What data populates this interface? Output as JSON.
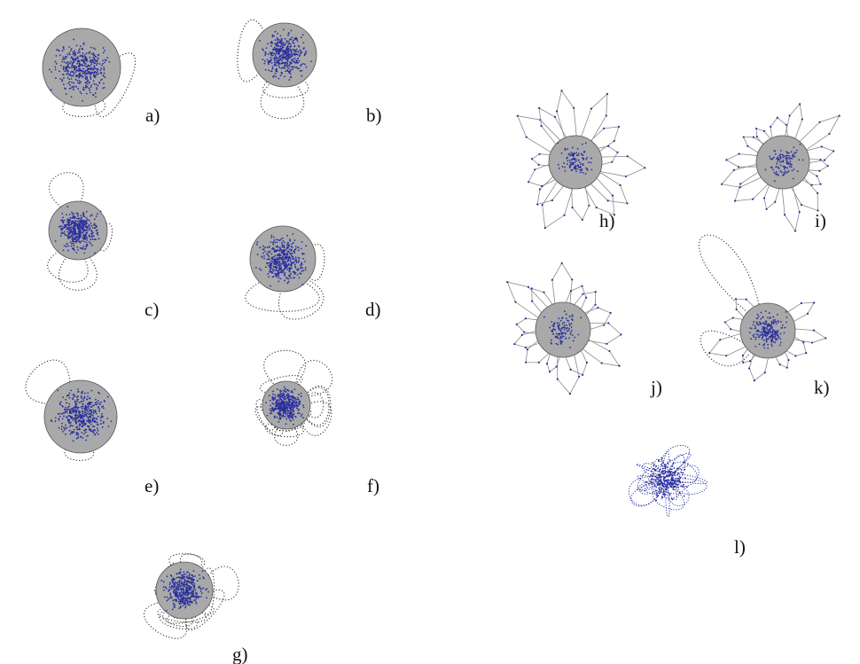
{
  "figure": {
    "colors": {
      "disc_fill": "#a9a9a9",
      "disc_stroke": "#555555",
      "node": "#2a2f9e",
      "edge_dotted": "#333333",
      "edge_light": "#8a8a8a",
      "label": "#111111"
    },
    "panels": [
      {
        "id": "a",
        "label": "a)",
        "style": "dotted",
        "loops": 2,
        "node_density": "high"
      },
      {
        "id": "b",
        "label": "b)",
        "style": "dotted",
        "loops": 3,
        "node_density": "high"
      },
      {
        "id": "c",
        "label": "c)",
        "style": "dotted",
        "loops": 4,
        "node_density": "high"
      },
      {
        "id": "d",
        "label": "d)",
        "style": "dotted",
        "loops": 3,
        "node_density": "high"
      },
      {
        "id": "e",
        "label": "e)",
        "style": "dotted",
        "loops": 2,
        "node_density": "high"
      },
      {
        "id": "f",
        "label": "f)",
        "style": "dotted",
        "loops": 14,
        "node_density": "high"
      },
      {
        "id": "g",
        "label": "g)",
        "style": "dotted",
        "loops": 12,
        "node_density": "high"
      },
      {
        "id": "h",
        "label": "h)",
        "style": "petals",
        "loops": 14,
        "node_density": "low"
      },
      {
        "id": "i",
        "label": "i)",
        "style": "petals",
        "loops": 14,
        "node_density": "low"
      },
      {
        "id": "j",
        "label": "j)",
        "style": "petals",
        "loops": 14,
        "node_density": "low"
      },
      {
        "id": "k",
        "label": "k)",
        "style": "mixed",
        "loops": 9,
        "node_density": "medium"
      },
      {
        "id": "l",
        "label": "l)",
        "style": "tangle",
        "loops": 30,
        "node_density": "high"
      }
    ]
  }
}
